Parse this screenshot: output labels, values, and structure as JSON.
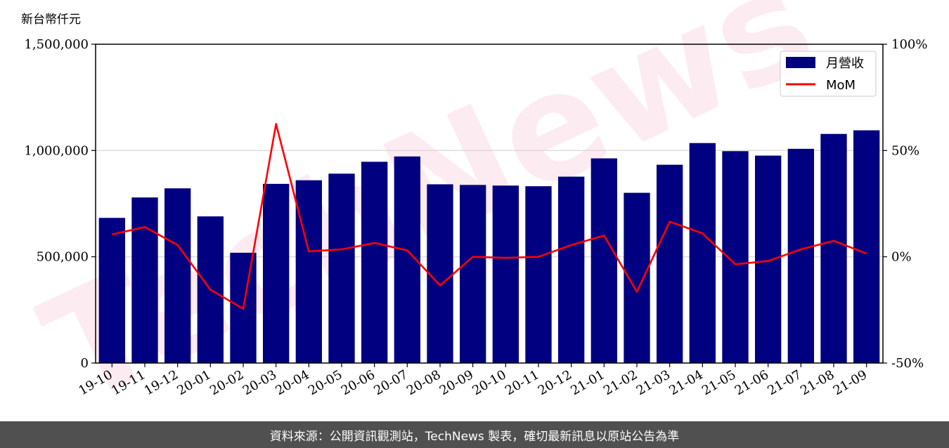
{
  "chart_data": {
    "type": "bar",
    "y_unit_label": "新台幣仟元",
    "categories": [
      "19-10",
      "19-11",
      "19-12",
      "20-01",
      "20-02",
      "20-03",
      "20-04",
      "20-05",
      "20-06",
      "20-07",
      "20-08",
      "20-09",
      "20-10",
      "20-11",
      "20-12",
      "21-01",
      "21-02",
      "21-03",
      "21-04",
      "21-05",
      "21-06",
      "21-07",
      "21-08",
      "21-09"
    ],
    "series": [
      {
        "name": "月營收",
        "type": "bar",
        "axis": "left",
        "color": "#000080",
        "values": [
          683000,
          779000,
          822000,
          690000,
          519000,
          843000,
          860000,
          891000,
          947000,
          972000,
          841000,
          838000,
          835000,
          832000,
          877000,
          963000,
          801000,
          933000,
          1035000,
          997000,
          976000,
          1008000,
          1078000,
          1095000
        ]
      },
      {
        "name": "MoM",
        "type": "line",
        "axis": "right",
        "color": "#ff0000",
        "values": [
          10.5,
          14.0,
          5.5,
          -15.5,
          -24.5,
          62.5,
          2.5,
          3.5,
          6.5,
          3.0,
          -13.5,
          0.0,
          -0.5,
          0.0,
          5.5,
          10.0,
          -16.5,
          16.5,
          11.0,
          -3.5,
          -2.0,
          3.5,
          7.5,
          1.5
        ]
      }
    ],
    "ylim_left": [
      0,
      1500000
    ],
    "yticks_left": [
      "0",
      "500,000",
      "1,000,000",
      "1,500,000"
    ],
    "yticks_left_values": [
      0,
      500000,
      1000000,
      1500000
    ],
    "ylim_right": [
      -50,
      100
    ],
    "yticks_right": [
      "-50%",
      "0%",
      "50%",
      "100%"
    ],
    "yticks_right_values": [
      -50,
      0,
      50,
      100
    ],
    "grid": "horizontal",
    "legend_position": "top-right",
    "watermark": "TechNews"
  },
  "footer_text": "資料來源：公開資訊觀測站，TechNews 製表，確切最新訊息以原站公告為準"
}
